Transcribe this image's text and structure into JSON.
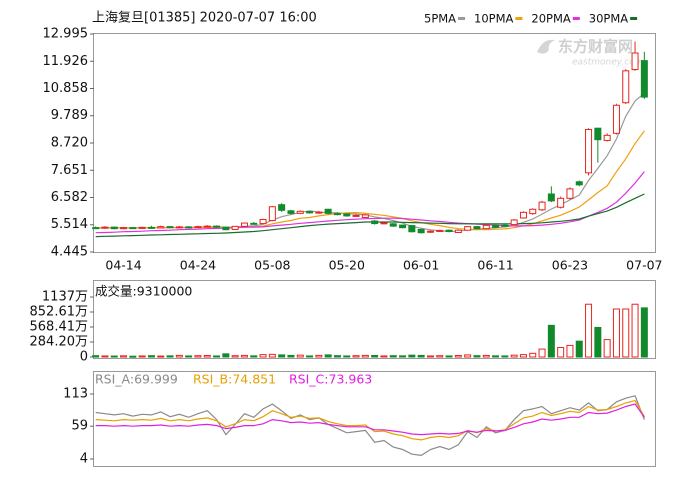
{
  "chart_data": [
    {
      "type": "candlestick",
      "title": "上海复旦[01385] 2020-07-07 16:00",
      "watermark": "东方财富网",
      "watermark_sub": "eastmoney.com",
      "up_color": "#e8251f",
      "down_color": "#118a2c",
      "categories": [
        null,
        null,
        null,
        "04-14",
        null,
        null,
        null,
        null,
        null,
        null,
        null,
        "04-24",
        null,
        null,
        null,
        null,
        null,
        null,
        null,
        "05-08",
        null,
        null,
        null,
        null,
        null,
        null,
        null,
        "05-20",
        null,
        null,
        null,
        null,
        null,
        null,
        null,
        "06-01",
        null,
        null,
        null,
        null,
        null,
        null,
        null,
        "06-11",
        null,
        null,
        null,
        null,
        null,
        null,
        null,
        "06-23",
        null,
        null,
        null,
        null,
        null,
        null,
        null,
        "07-07"
      ],
      "open": [
        5.4,
        5.38,
        5.42,
        5.36,
        5.4,
        5.37,
        5.41,
        5.39,
        5.44,
        5.4,
        5.43,
        5.41,
        5.44,
        5.46,
        5.42,
        5.33,
        5.45,
        5.57,
        5.56,
        5.68,
        6.3,
        6.06,
        5.96,
        6.03,
        5.98,
        6.12,
        5.95,
        5.94,
        5.86,
        5.8,
        5.66,
        5.57,
        5.55,
        5.5,
        5.48,
        5.33,
        5.22,
        5.27,
        5.3,
        5.21,
        5.3,
        5.44,
        5.36,
        5.49,
        5.5,
        5.52,
        5.78,
        5.95,
        6.1,
        6.72,
        6.2,
        6.55,
        7.2,
        7.55,
        9.3,
        8.82,
        9.1,
        10.3,
        11.6,
        11.95
      ],
      "high": [
        5.45,
        5.46,
        5.44,
        5.43,
        5.42,
        5.44,
        5.47,
        5.48,
        5.46,
        5.47,
        5.46,
        5.48,
        5.5,
        5.49,
        5.44,
        5.47,
        5.6,
        5.62,
        5.75,
        6.25,
        6.36,
        6.1,
        6.08,
        6.06,
        6.05,
        6.14,
        6.0,
        5.96,
        5.92,
        5.93,
        5.7,
        5.62,
        5.58,
        5.52,
        5.5,
        5.36,
        5.29,
        5.32,
        5.33,
        5.33,
        5.46,
        5.47,
        5.52,
        5.52,
        5.54,
        5.74,
        6.04,
        6.16,
        6.45,
        7.02,
        6.62,
        6.98,
        7.25,
        9.3,
        9.32,
        9.1,
        10.26,
        11.62,
        12.7,
        12.3
      ],
      "low": [
        5.35,
        5.36,
        5.33,
        5.34,
        5.35,
        5.35,
        5.36,
        5.37,
        5.38,
        5.38,
        5.39,
        5.39,
        5.41,
        5.4,
        5.3,
        5.31,
        5.43,
        5.52,
        5.54,
        5.65,
        6.02,
        5.92,
        5.93,
        5.95,
        5.94,
        5.92,
        5.88,
        5.83,
        5.82,
        5.78,
        5.52,
        5.53,
        5.43,
        5.37,
        5.21,
        5.17,
        5.19,
        5.24,
        5.22,
        5.19,
        5.28,
        5.33,
        5.34,
        5.38,
        5.42,
        5.5,
        5.75,
        5.9,
        6.05,
        6.4,
        6.15,
        6.5,
        7.02,
        7.45,
        7.95,
        8.78,
        9.05,
        10.25,
        11.55,
        10.45
      ],
      "close": [
        5.38,
        5.42,
        5.36,
        5.4,
        5.37,
        5.41,
        5.39,
        5.44,
        5.4,
        5.43,
        5.41,
        5.44,
        5.46,
        5.43,
        5.32,
        5.45,
        5.58,
        5.55,
        5.72,
        6.22,
        6.08,
        5.96,
        6.04,
        5.98,
        6.01,
        5.96,
        5.92,
        5.86,
        5.88,
        5.9,
        5.56,
        5.59,
        5.46,
        5.4,
        5.24,
        5.2,
        5.26,
        5.29,
        5.25,
        5.3,
        5.44,
        5.36,
        5.49,
        5.41,
        5.45,
        5.7,
        6.0,
        6.12,
        6.4,
        6.45,
        6.55,
        6.92,
        7.08,
        9.25,
        8.85,
        9.02,
        10.2,
        11.55,
        12.25,
        10.52
      ],
      "series": [
        {
          "name": "5PMA",
          "color": "#9a9a9a",
          "values": [
            5.4,
            5.4,
            5.4,
            5.39,
            5.39,
            5.39,
            5.39,
            5.4,
            5.4,
            5.41,
            5.41,
            5.42,
            5.43,
            5.44,
            5.41,
            5.42,
            5.45,
            5.47,
            5.53,
            5.7,
            5.83,
            5.91,
            6.0,
            6.06,
            6.01,
            5.99,
            5.98,
            5.95,
            5.93,
            5.9,
            5.82,
            5.76,
            5.68,
            5.58,
            5.45,
            5.38,
            5.31,
            5.28,
            5.25,
            5.26,
            5.31,
            5.33,
            5.37,
            5.4,
            5.43,
            5.48,
            5.61,
            5.74,
            5.93,
            6.13,
            6.3,
            6.49,
            6.68,
            7.25,
            7.73,
            8.22,
            8.88,
            9.77,
            10.37,
            10.67
          ]
        },
        {
          "name": "10PMA",
          "color": "#f0a010",
          "values": [
            5.38,
            5.38,
            5.39,
            5.39,
            5.39,
            5.39,
            5.39,
            5.39,
            5.4,
            5.4,
            5.4,
            5.4,
            5.41,
            5.41,
            5.4,
            5.41,
            5.42,
            5.43,
            5.46,
            5.55,
            5.62,
            5.68,
            5.77,
            5.8,
            5.86,
            5.91,
            5.95,
            5.98,
            5.99,
            5.96,
            5.92,
            5.88,
            5.82,
            5.76,
            5.67,
            5.6,
            5.53,
            5.48,
            5.41,
            5.36,
            5.34,
            5.32,
            5.32,
            5.34,
            5.35,
            5.4,
            5.47,
            5.55,
            5.66,
            5.78,
            5.89,
            6.04,
            6.21,
            6.49,
            6.78,
            7.04,
            7.6,
            8.1,
            8.7,
            9.2
          ]
        },
        {
          "name": "20PMA",
          "color": "#e030e0",
          "values": [
            5.2,
            5.21,
            5.22,
            5.24,
            5.25,
            5.26,
            5.28,
            5.29,
            5.3,
            5.32,
            5.33,
            5.34,
            5.36,
            5.37,
            5.38,
            5.4,
            5.42,
            5.42,
            5.43,
            5.47,
            5.5,
            5.53,
            5.57,
            5.6,
            5.63,
            5.66,
            5.69,
            5.71,
            5.73,
            5.75,
            5.76,
            5.77,
            5.77,
            5.76,
            5.73,
            5.7,
            5.67,
            5.64,
            5.61,
            5.58,
            5.56,
            5.54,
            5.52,
            5.5,
            5.48,
            5.47,
            5.47,
            5.48,
            5.5,
            5.53,
            5.57,
            5.63,
            5.7,
            5.85,
            6.0,
            6.16,
            6.4,
            6.75,
            7.15,
            7.6
          ]
        },
        {
          "name": "30PMA",
          "color": "#1a6d2a",
          "values": [
            5.05,
            5.06,
            5.07,
            5.08,
            5.09,
            5.1,
            5.11,
            5.12,
            5.13,
            5.14,
            5.15,
            5.16,
            5.17,
            5.18,
            5.19,
            5.21,
            5.23,
            5.25,
            5.28,
            5.32,
            5.36,
            5.4,
            5.44,
            5.48,
            5.51,
            5.54,
            5.56,
            5.58,
            5.6,
            5.62,
            5.62,
            5.62,
            5.62,
            5.61,
            5.6,
            5.59,
            5.58,
            5.57,
            5.56,
            5.55,
            5.55,
            5.55,
            5.55,
            5.55,
            5.55,
            5.55,
            5.56,
            5.57,
            5.59,
            5.62,
            5.65,
            5.69,
            5.74,
            5.85,
            5.95,
            6.05,
            6.2,
            6.38,
            6.55,
            6.72
          ]
        }
      ],
      "ylim": [
        4.445,
        12.995
      ],
      "yticks": [
        12.995,
        11.926,
        10.858,
        9.789,
        {
          "value": 8.72,
          "label": "8.720"
        },
        7.651,
        6.582,
        5.514,
        4.445
      ]
    },
    {
      "type": "bar",
      "title": "成交量:9310000",
      "values": [
        25,
        20,
        18,
        22,
        15,
        20,
        25,
        18,
        22,
        30,
        20,
        25,
        28,
        20,
        60,
        25,
        30,
        22,
        45,
        50,
        40,
        30,
        35,
        20,
        30,
        40,
        25,
        20,
        25,
        30,
        28,
        20,
        25,
        22,
        35,
        30,
        20,
        25,
        20,
        28,
        40,
        25,
        30,
        22,
        20,
        35,
        45,
        70,
        150,
        600,
        180,
        220,
        300,
        1000,
        560,
        330,
        910,
        910,
        1000,
        931
      ],
      "ylim": [
        0,
        1137
      ],
      "yticks": [
        {
          "value": 1137,
          "label": "1137万"
        },
        {
          "value": 852.61,
          "label": "852.61万"
        },
        {
          "value": 568.41,
          "label": "568.41万"
        },
        {
          "value": 284.2,
          "label": "284.20万"
        },
        0
      ]
    },
    {
      "type": "line",
      "series": [
        {
          "name": "RSI_A:69.999",
          "color": "#8a8a8a",
          "values": [
            82,
            80,
            78,
            80,
            76,
            79,
            78,
            83,
            75,
            79,
            74,
            80,
            85,
            70,
            45,
            62,
            80,
            74,
            88,
            96,
            85,
            72,
            78,
            70,
            73,
            62,
            55,
            48,
            50,
            52,
            32,
            35,
            24,
            20,
            12,
            10,
            20,
            25,
            20,
            28,
            50,
            40,
            58,
            48,
            52,
            70,
            85,
            88,
            92,
            80,
            85,
            90,
            86,
            98,
            85,
            87,
            100,
            106,
            110,
            69.999
          ]
        },
        {
          "name": "RSI_B:74.851",
          "color": "#e8a000",
          "values": [
            70,
            69,
            68,
            70,
            69,
            70,
            69,
            72,
            68,
            70,
            68,
            71,
            73,
            68,
            58,
            63,
            70,
            68,
            75,
            85,
            80,
            74,
            76,
            72,
            73,
            67,
            63,
            60,
            60,
            61,
            50,
            51,
            46,
            43,
            38,
            36,
            40,
            42,
            40,
            43,
            52,
            48,
            55,
            51,
            53,
            63,
            73,
            76,
            82,
            77,
            80,
            84,
            82,
            92,
            86,
            87,
            92,
            98,
            102,
            74.851
          ]
        },
        {
          "name": "RSI_C:73.963",
          "color": "#e020e0",
          "values": [
            60,
            60,
            59,
            60,
            59,
            60,
            60,
            61,
            59,
            60,
            59,
            61,
            62,
            60,
            55,
            57,
            60,
            60,
            63,
            70,
            68,
            65,
            66,
            64,
            65,
            62,
            60,
            58,
            58,
            58,
            53,
            53,
            51,
            49,
            46,
            45,
            46,
            47,
            46,
            47,
            51,
            49,
            52,
            51,
            52,
            57,
            63,
            66,
            71,
            69,
            71,
            74,
            74,
            82,
            80,
            81,
            86,
            92,
            96,
            73.963
          ]
        }
      ],
      "ylim": [
        4,
        113
      ],
      "yticks": [
        113,
        59,
        4
      ]
    }
  ]
}
